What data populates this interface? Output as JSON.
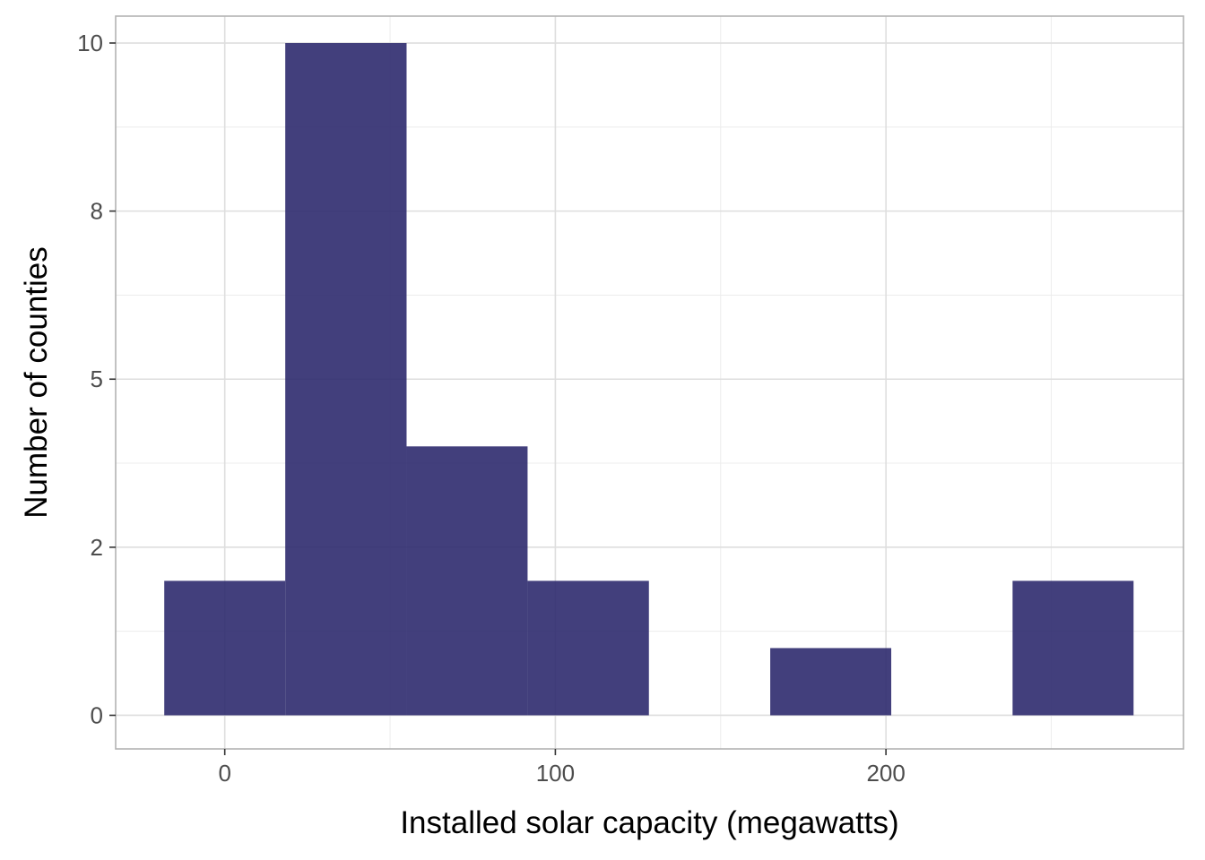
{
  "chart_data": {
    "type": "bar",
    "xlabel": "Installed solar capacity (megawatts)",
    "ylabel": "Number of counties",
    "xlim": [
      -33,
      290
    ],
    "ylim": [
      -0.5,
      10.4
    ],
    "x_ticks": [
      0,
      100,
      200
    ],
    "y_ticks": [
      0,
      2,
      5,
      8,
      10
    ],
    "y_tick_values": [
      0,
      2.5,
      5,
      7.5,
      10
    ],
    "grid": true,
    "bins": [
      {
        "x0": -18.3,
        "x1": 18.3,
        "count": 2
      },
      {
        "x0": 18.3,
        "x1": 55.0,
        "count": 10
      },
      {
        "x0": 55.0,
        "x1": 91.6,
        "count": 4
      },
      {
        "x0": 91.6,
        "x1": 128.3,
        "count": 2
      },
      {
        "x0": 128.3,
        "x1": 165.0,
        "count": 0
      },
      {
        "x0": 165.0,
        "x1": 201.6,
        "count": 1
      },
      {
        "x0": 201.6,
        "x1": 238.3,
        "count": 0
      },
      {
        "x0": 238.3,
        "x1": 274.9,
        "count": 2
      }
    ],
    "bar_color": "#2e2a6e",
    "bar_opacity": 0.9
  }
}
